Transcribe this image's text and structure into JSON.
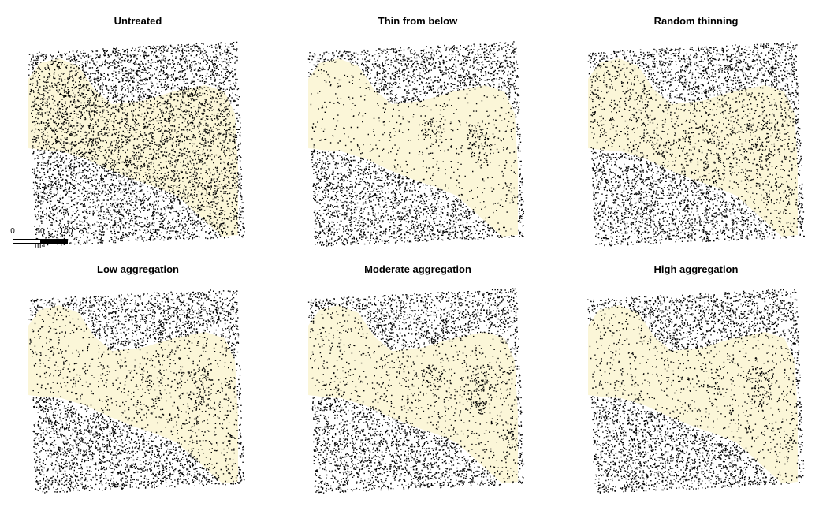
{
  "colors": {
    "opening": "#fbf6d8",
    "tree": "#000000",
    "background": "#ffffff"
  },
  "panels": [
    {
      "id": "untreated",
      "title": "Untreated",
      "opening_density": 0.62
    },
    {
      "id": "thin-from-below",
      "title": "Thin from below",
      "opening_density": 0.1
    },
    {
      "id": "random-thinning",
      "title": "Random thinning",
      "opening_density": 0.3
    },
    {
      "id": "low-aggregation",
      "title": "Low aggregation",
      "opening_density": 0.2
    },
    {
      "id": "moderate-aggregation",
      "title": "Moderate aggregation",
      "opening_density": 0.18
    },
    {
      "id": "high-aggregation",
      "title": "High aggregation",
      "opening_density": 0.17
    }
  ],
  "scale_bar": {
    "ticks": [
      "0",
      "50",
      "100"
    ],
    "unit": "m"
  }
}
